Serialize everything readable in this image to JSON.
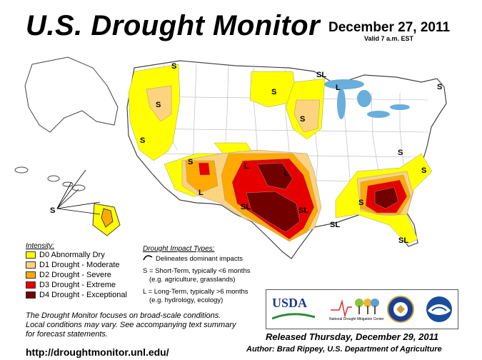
{
  "header": {
    "title": "U.S. Drought Monitor",
    "date": "December 27, 2011",
    "valid": "Valid 7 a.m. EST"
  },
  "legend": {
    "title": "Intensity:",
    "items": [
      {
        "label": "D0 Abnormally Dry",
        "color": "#ffff00"
      },
      {
        "label": "D1 Drought - Moderate",
        "color": "#fcd37f"
      },
      {
        "label": "D2 Drought - Severe",
        "color": "#ffaa00"
      },
      {
        "label": "D3 Drought - Extreme",
        "color": "#e60000"
      },
      {
        "label": "D4 Drought - Exceptional",
        "color": "#730000"
      }
    ]
  },
  "impacts": {
    "title": "Drought Impact Types:",
    "delineates": "Delineates dominant impacts",
    "short_term_1": "S = Short-Term, typically <6 months",
    "short_term_2": "(e.g. agriculture, grasslands)",
    "long_term_1": "L = Long-Term, typically >6 months",
    "long_term_2": "(e.g. hydrology, ecology)"
  },
  "map_labels": {
    "S": "S",
    "L": "L",
    "SL": "SL"
  },
  "disclaimer": [
    "The Drought Monitor focuses on broad-scale conditions.",
    "Local conditions may vary. See accompanying text summary",
    "for forecast statements."
  ],
  "url": "http://droughtmonitor.unl.edu/",
  "logos": {
    "usda": "USDA",
    "ndmc": "National Drought Mitigation Center"
  },
  "released": "Released Thursday, December 29, 2011",
  "author": "Author: Brad Rippey, U.S. Department of Agriculture"
}
